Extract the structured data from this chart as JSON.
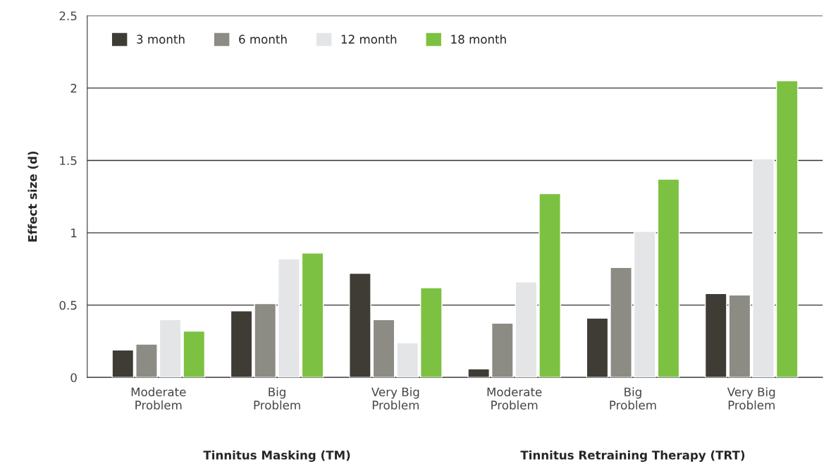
{
  "chart_data": {
    "type": "bar",
    "ylabel": "Effect size (d)",
    "categories": [
      "Moderate\nProblem",
      "Big\nProblem",
      "Very Big\nProblem",
      "Moderate\nProblem",
      "Big\nProblem",
      "Very Big\nProblem"
    ],
    "series": [
      {
        "name": "3 month",
        "color": "#3f3c36",
        "values": [
          0.19,
          0.46,
          0.72,
          0.06,
          0.41,
          0.58
        ]
      },
      {
        "name": "6 month",
        "color": "#8c8b84",
        "values": [
          0.23,
          0.51,
          0.4,
          0.375,
          0.76,
          0.57
        ]
      },
      {
        "name": "12 month",
        "color": "#e4e5e7",
        "values": [
          0.4,
          0.82,
          0.24,
          0.66,
          1.01,
          1.51
        ]
      },
      {
        "name": "18 month",
        "color": "#7dc142",
        "values": [
          0.32,
          0.86,
          0.62,
          1.27,
          1.37,
          2.05
        ]
      }
    ],
    "annotations": [
      "Tinnitus Masking (TM)",
      "Tinnitus Retraining Therapy (TRT)"
    ],
    "ylim": [
      0,
      2.5
    ],
    "yticks": [
      0,
      0.5,
      1,
      1.5,
      2,
      2.5
    ],
    "grid": "y",
    "legend": "top left"
  }
}
